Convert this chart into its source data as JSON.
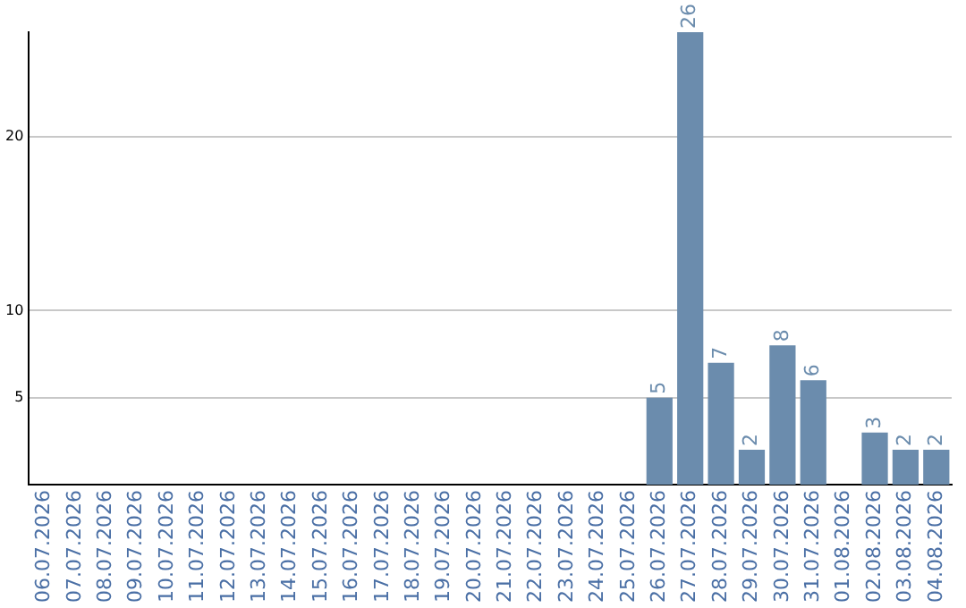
{
  "chart_data": {
    "type": "bar",
    "categories": [
      "06.07.2026",
      "07.07.2026",
      "08.07.2026",
      "09.07.2026",
      "10.07.2026",
      "11.07.2026",
      "12.07.2026",
      "13.07.2026",
      "14.07.2026",
      "15.07.2026",
      "16.07.2026",
      "17.07.2026",
      "18.07.2026",
      "19.07.2026",
      "20.07.2026",
      "21.07.2026",
      "22.07.2026",
      "23.07.2026",
      "24.07.2026",
      "25.07.2026",
      "26.07.2026",
      "27.07.2026",
      "28.07.2026",
      "29.07.2026",
      "30.07.2026",
      "31.07.2026",
      "01.08.2026",
      "02.08.2026",
      "03.08.2026",
      "04.08.2026"
    ],
    "values": [
      0,
      0,
      0,
      0,
      0,
      0,
      0,
      0,
      0,
      0,
      0,
      0,
      0,
      0,
      0,
      0,
      0,
      0,
      0,
      0,
      5,
      26,
      7,
      2,
      8,
      6,
      0,
      3,
      2,
      2
    ],
    "value_labels": [
      null,
      null,
      null,
      null,
      null,
      null,
      null,
      null,
      null,
      null,
      null,
      null,
      null,
      null,
      null,
      null,
      null,
      null,
      null,
      null,
      "5",
      "26",
      "7",
      "2",
      "8",
      "6",
      null,
      "3",
      "2",
      "2"
    ],
    "color": "#6b8cad",
    "ylim": [
      0,
      26
    ],
    "yticks": [
      5,
      10,
      20
    ],
    "grid": "y",
    "legend": false
  }
}
